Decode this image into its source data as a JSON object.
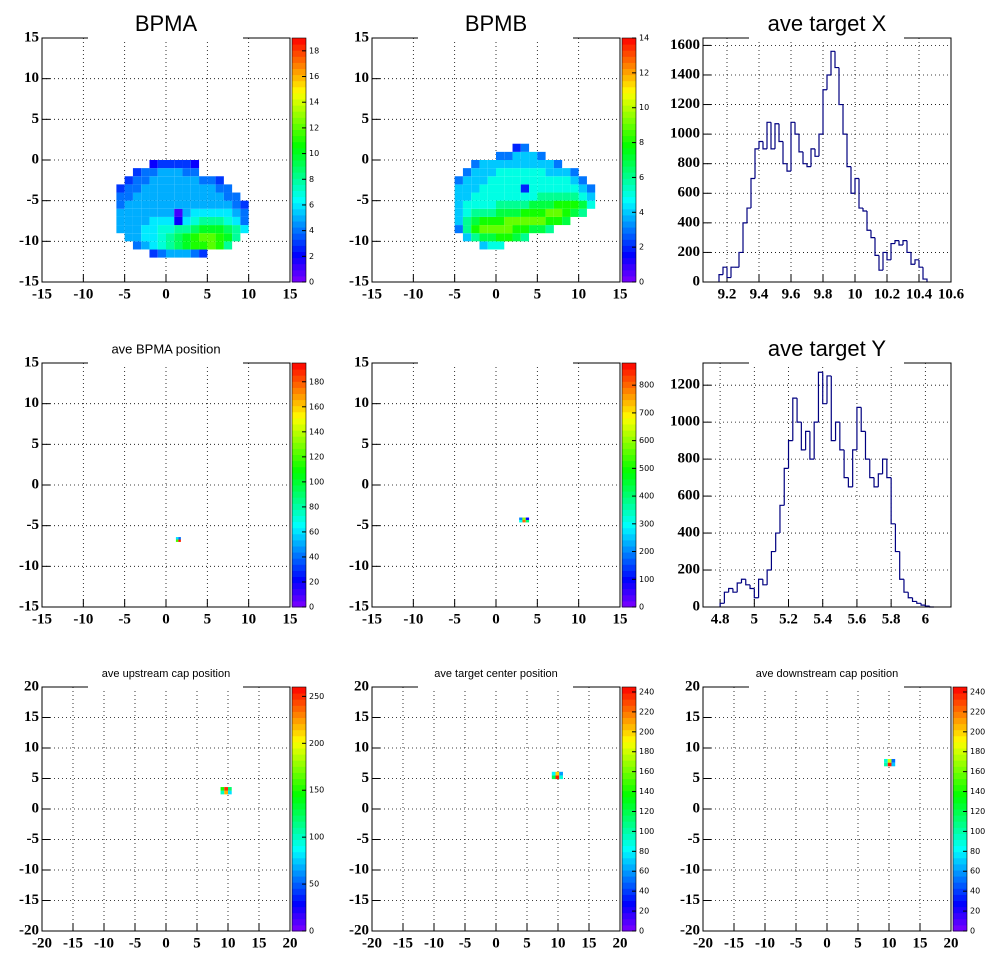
{
  "chart_data": [
    {
      "type": "heatmap",
      "title": "BPMA",
      "colormap": "rainbow",
      "grid": true,
      "xlim": [
        -15,
        15
      ],
      "xticks": [
        -15,
        -10,
        -5,
        0,
        5,
        10,
        15
      ],
      "ylim": [
        -15,
        15
      ],
      "yticks": [
        -15,
        -10,
        -5,
        0,
        5,
        10,
        15
      ],
      "zlim": [
        0,
        19
      ],
      "zticks": [
        0,
        2,
        4,
        6,
        8,
        10,
        12,
        14,
        16,
        18
      ],
      "xbins": [
        -7,
        -6,
        -5,
        -4,
        -3,
        -2,
        -1,
        0,
        1,
        2,
        3,
        4,
        5,
        6,
        7,
        8,
        9,
        10
      ],
      "ybins": [
        -12,
        -11,
        -10,
        -9,
        -8,
        -7,
        -6,
        -5,
        -4,
        -3,
        -2,
        -1,
        0
      ],
      "values": [
        [
          null,
          null,
          null,
          null,
          null,
          3,
          4,
          5,
          5,
          5,
          4,
          3,
          null,
          null,
          null,
          null,
          null
        ],
        [
          null,
          null,
          null,
          4,
          5,
          6,
          7,
          8,
          9,
          10,
          11,
          11,
          12,
          11,
          8,
          null,
          null
        ],
        [
          null,
          null,
          5,
          5,
          6,
          6,
          7,
          8,
          9,
          10,
          11,
          12,
          12,
          11,
          10,
          8,
          null
        ],
        [
          null,
          5,
          5,
          5,
          6,
          6,
          7,
          7,
          8,
          8,
          9,
          10,
          10,
          10,
          9,
          8,
          6
        ],
        [
          null,
          5,
          5,
          5,
          5,
          6,
          6,
          6,
          2,
          6,
          7,
          8,
          8,
          8,
          7,
          6,
          4
        ],
        [
          null,
          5,
          5,
          5,
          5,
          5,
          5,
          5,
          1,
          5,
          6,
          6,
          6,
          6,
          6,
          5,
          4
        ],
        [
          null,
          4,
          5,
          5,
          5,
          5,
          5,
          5,
          5,
          5,
          5,
          5,
          5,
          5,
          5,
          4,
          3
        ],
        [
          null,
          4,
          4,
          5,
          5,
          5,
          5,
          5,
          5,
          5,
          5,
          5,
          5,
          5,
          4,
          4,
          null
        ],
        [
          null,
          3,
          4,
          4,
          5,
          5,
          5,
          5,
          5,
          5,
          5,
          5,
          5,
          4,
          4,
          null,
          null
        ],
        [
          null,
          null,
          3,
          4,
          4,
          5,
          5,
          5,
          5,
          5,
          5,
          4,
          4,
          3,
          null,
          null,
          null
        ],
        [
          null,
          null,
          null,
          3,
          4,
          4,
          5,
          5,
          5,
          4,
          4,
          null,
          null,
          null,
          null,
          null,
          null
        ],
        [
          null,
          null,
          null,
          null,
          null,
          2,
          3,
          3,
          3,
          3,
          2,
          null,
          null,
          null,
          null,
          null,
          null
        ]
      ]
    },
    {
      "type": "heatmap",
      "title": "BPMB",
      "colormap": "rainbow",
      "grid": true,
      "xlim": [
        -15,
        15
      ],
      "xticks": [
        -15,
        -10,
        -5,
        0,
        5,
        10,
        15
      ],
      "ylim": [
        -15,
        15
      ],
      "yticks": [
        -15,
        -10,
        -5,
        0,
        5,
        10,
        15
      ],
      "zlim": [
        0,
        14
      ],
      "zticks": [
        0,
        2,
        4,
        6,
        8,
        10,
        12,
        14
      ],
      "xbins": [
        -5,
        -4,
        -3,
        -2,
        -1,
        0,
        1,
        2,
        3,
        4,
        5,
        6,
        7,
        8,
        9,
        10,
        11,
        12
      ],
      "ybins": [
        -11,
        -10,
        -9,
        -8,
        -7,
        -6,
        -5,
        -4,
        -3,
        -2,
        -1,
        0,
        1,
        2
      ],
      "values": [
        [
          null,
          null,
          null,
          4,
          5,
          5,
          null,
          null,
          null,
          null,
          null,
          null,
          null,
          null,
          null,
          null,
          null
        ],
        [
          null,
          4,
          6,
          7,
          7,
          8,
          8,
          7,
          6,
          null,
          null,
          null,
          null,
          null,
          null,
          null,
          null
        ],
        [
          3,
          6,
          8,
          9,
          9,
          9,
          9,
          8,
          8,
          7,
          7,
          6,
          null,
          null,
          null,
          null,
          null
        ],
        [
          4,
          6,
          7,
          8,
          8,
          8,
          9,
          9,
          9,
          9,
          9,
          8,
          8,
          7,
          null,
          null,
          null
        ],
        [
          4,
          5,
          6,
          6,
          6,
          7,
          7,
          7,
          8,
          8,
          8,
          9,
          9,
          8,
          7,
          6,
          null
        ],
        [
          4,
          5,
          5,
          5,
          5,
          6,
          6,
          6,
          6,
          7,
          7,
          7,
          8,
          8,
          8,
          7,
          5
        ],
        [
          4,
          4,
          5,
          5,
          5,
          5,
          5,
          5,
          5,
          5,
          6,
          6,
          6,
          6,
          6,
          5,
          4
        ],
        [
          4,
          4,
          4,
          5,
          5,
          5,
          5,
          5,
          2,
          5,
          5,
          5,
          5,
          5,
          5,
          4,
          3
        ],
        [
          3,
          4,
          4,
          4,
          5,
          5,
          5,
          5,
          5,
          5,
          5,
          5,
          5,
          5,
          4,
          3,
          null
        ],
        [
          null,
          3,
          4,
          4,
          4,
          5,
          5,
          5,
          5,
          5,
          5,
          4,
          4,
          4,
          3,
          null,
          null
        ],
        [
          null,
          null,
          3,
          4,
          4,
          4,
          4,
          4,
          4,
          4,
          4,
          4,
          3,
          null,
          null,
          null,
          null
        ],
        [
          null,
          null,
          null,
          null,
          null,
          3,
          3,
          4,
          4,
          4,
          3,
          null,
          null,
          null,
          null,
          null,
          null
        ],
        [
          null,
          null,
          null,
          null,
          null,
          null,
          null,
          2,
          3,
          null,
          null,
          null,
          null,
          null,
          null,
          null,
          null
        ]
      ]
    },
    {
      "type": "histogram",
      "title": "ave target X",
      "color": "#000080",
      "grid": true,
      "xlim": [
        9.05,
        10.6
      ],
      "xticks": [
        9.2,
        9.4,
        9.6,
        9.8,
        10,
        10.2,
        10.4,
        10.6
      ],
      "ylim": [
        0,
        1650
      ],
      "yticks": [
        0,
        200,
        400,
        600,
        800,
        1000,
        1200,
        1400,
        1600
      ],
      "bins": [
        9.15,
        9.175,
        9.2,
        9.225,
        9.25,
        9.275,
        9.3,
        9.325,
        9.35,
        9.375,
        9.4,
        9.425,
        9.45,
        9.475,
        9.5,
        9.525,
        9.55,
        9.575,
        9.6,
        9.625,
        9.65,
        9.675,
        9.7,
        9.725,
        9.75,
        9.775,
        9.8,
        9.825,
        9.85,
        9.875,
        9.9,
        9.925,
        9.95,
        9.975,
        10,
        10.025,
        10.05,
        10.075,
        10.1,
        10.125,
        10.15,
        10.175,
        10.2,
        10.225,
        10.25,
        10.275,
        10.3,
        10.325,
        10.35,
        10.375,
        10.4,
        10.425,
        10.45
      ],
      "values": [
        50,
        100,
        30,
        100,
        100,
        200,
        400,
        500,
        700,
        900,
        950,
        900,
        1080,
        900,
        1070,
        950,
        800,
        750,
        1080,
        1000,
        880,
        800,
        780,
        900,
        850,
        1000,
        1300,
        1400,
        1560,
        1450,
        1200,
        1000,
        780,
        600,
        700,
        500,
        480,
        350,
        300,
        180,
        80,
        200,
        150,
        260,
        280,
        250,
        280,
        200,
        120,
        150,
        100,
        20
      ]
    },
    {
      "type": "heatmap",
      "title": "ave BPMA position",
      "colormap": "rainbow",
      "grid": true,
      "xlim": [
        -15,
        15
      ],
      "xticks": [
        -15,
        -10,
        -5,
        0,
        5,
        10,
        15
      ],
      "ylim": [
        -15,
        15
      ],
      "yticks": [
        -15,
        -10,
        -5,
        0,
        5,
        10,
        15
      ],
      "zlim": [
        0,
        195
      ],
      "zticks": [
        0,
        20,
        40,
        60,
        80,
        100,
        120,
        140,
        160,
        180
      ],
      "xbins": [
        1.2,
        1.5,
        1.8
      ],
      "ybins": [
        -7,
        -6.7,
        -6.4
      ],
      "values": [
        [
          120,
          190
        ],
        [
          60,
          40
        ]
      ]
    },
    {
      "type": "heatmap",
      "colormap": "rainbow",
      "grid": true,
      "xlim": [
        -15,
        15
      ],
      "xticks": [
        -15,
        -10,
        -5,
        0,
        5,
        10,
        15
      ],
      "ylim": [
        -15,
        15
      ],
      "yticks": [
        -15,
        -10,
        -5,
        0,
        5,
        10,
        15
      ],
      "zlim": [
        0,
        880
      ],
      "zticks": [
        0,
        100,
        200,
        300,
        400,
        500,
        600,
        700,
        800
      ],
      "xbins": [
        2.8,
        3.2,
        3.6,
        4.0
      ],
      "ybins": [
        -4.6,
        -4.3,
        -4.0
      ],
      "values": [
        [
          300,
          800,
          400
        ],
        [
          200,
          600,
          100
        ]
      ]
    },
    {
      "type": "histogram",
      "title": "ave target Y",
      "color": "#000080",
      "grid": true,
      "xlim": [
        4.7,
        6.15
      ],
      "xticks": [
        4.8,
        5,
        5.2,
        5.4,
        5.6,
        5.8,
        6
      ],
      "ylim": [
        0,
        1320
      ],
      "yticks": [
        0,
        200,
        400,
        600,
        800,
        1000,
        1200
      ],
      "bins": [
        4.8,
        4.825,
        4.85,
        4.875,
        4.9,
        4.925,
        4.95,
        4.975,
        5,
        5.025,
        5.05,
        5.075,
        5.1,
        5.125,
        5.15,
        5.175,
        5.2,
        5.225,
        5.25,
        5.275,
        5.3,
        5.325,
        5.35,
        5.375,
        5.4,
        5.425,
        5.45,
        5.475,
        5.5,
        5.525,
        5.55,
        5.575,
        5.6,
        5.625,
        5.65,
        5.675,
        5.7,
        5.725,
        5.75,
        5.775,
        5.8,
        5.825,
        5.85,
        5.875,
        5.9,
        5.925,
        5.95,
        5.975,
        6,
        6.025,
        6.05
      ],
      "values": [
        20,
        80,
        100,
        80,
        130,
        150,
        120,
        100,
        50,
        150,
        120,
        200,
        300,
        400,
        550,
        750,
        900,
        1130,
        1000,
        850,
        950,
        800,
        1000,
        1270,
        1100,
        1250,
        900,
        1000,
        850,
        700,
        650,
        850,
        1080,
        950,
        800,
        700,
        650,
        720,
        800,
        700,
        450,
        300,
        150,
        80,
        50,
        30,
        20,
        10,
        5,
        0
      ]
    },
    {
      "type": "heatmap",
      "title": "ave upstream cap position",
      "colormap": "rainbow",
      "grid": true,
      "xlim": [
        -20,
        20
      ],
      "xticks": [
        -20,
        -15,
        -10,
        -5,
        0,
        5,
        10,
        15,
        20
      ],
      "ylim": [
        -20,
        20
      ],
      "yticks": [
        -20,
        -15,
        -10,
        -5,
        0,
        5,
        10,
        15,
        20
      ],
      "zlim": [
        0,
        260
      ],
      "zticks": [
        0,
        50,
        100,
        150,
        200,
        250
      ],
      "xbins": [
        8.8,
        9.4,
        10.0,
        10.6
      ],
      "ybins": [
        2.4,
        3.0,
        3.6
      ],
      "values": [
        [
          100,
          220,
          80
        ],
        [
          150,
          250,
          120
        ]
      ]
    },
    {
      "type": "heatmap",
      "title": "ave target center  position",
      "colormap": "rainbow",
      "grid": true,
      "xlim": [
        -20,
        20
      ],
      "xticks": [
        -20,
        -15,
        -10,
        -5,
        0,
        5,
        10,
        15,
        20
      ],
      "ylim": [
        -20,
        20
      ],
      "yticks": [
        -20,
        -15,
        -10,
        -5,
        0,
        5,
        10,
        15,
        20
      ],
      "zlim": [
        0,
        245
      ],
      "zticks": [
        0,
        20,
        40,
        60,
        80,
        100,
        120,
        140,
        160,
        180,
        200,
        220,
        240
      ],
      "xbins": [
        9.0,
        9.6,
        10.2,
        10.8
      ],
      "ybins": [
        4.9,
        5.5,
        6.1
      ],
      "values": [
        [
          120,
          240,
          90
        ],
        [
          80,
          200,
          60
        ]
      ]
    },
    {
      "type": "heatmap",
      "title": "ave downstream cap position",
      "colormap": "rainbow",
      "grid": true,
      "xlim": [
        -20,
        20
      ],
      "xticks": [
        -20,
        -15,
        -10,
        -5,
        0,
        5,
        10,
        15,
        20
      ],
      "ylim": [
        -20,
        20
      ],
      "yticks": [
        -20,
        -15,
        -10,
        -5,
        0,
        5,
        10,
        15,
        20
      ],
      "zlim": [
        0,
        245
      ],
      "zticks": [
        0,
        20,
        40,
        60,
        80,
        100,
        120,
        140,
        160,
        180,
        200,
        220,
        240
      ],
      "xbins": [
        9.2,
        9.8,
        10.4,
        11.0
      ],
      "ybins": [
        7.0,
        7.6,
        8.2
      ],
      "values": [
        [
          100,
          240,
          70
        ],
        [
          90,
          180,
          50
        ]
      ]
    }
  ]
}
